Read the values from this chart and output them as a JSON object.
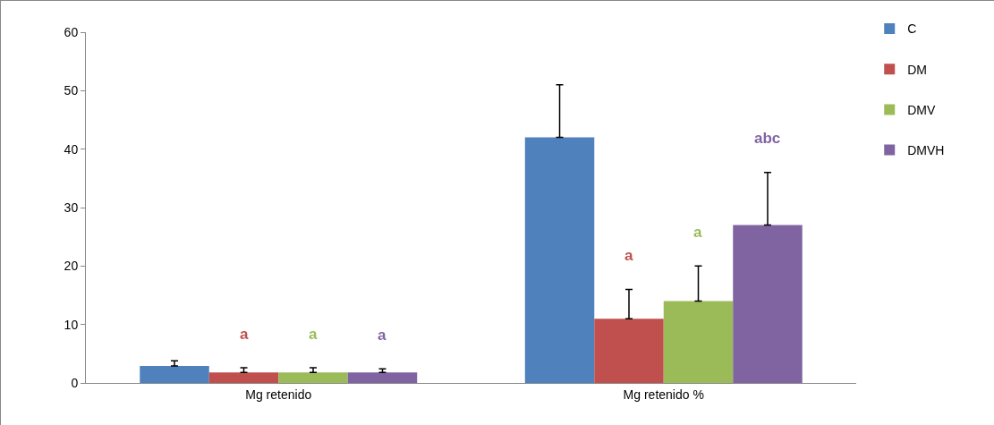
{
  "chart_data": {
    "type": "bar",
    "categories": [
      "Mg retenido",
      "Mg retenido %"
    ],
    "series": [
      {
        "name": "C",
        "color": "#4f81bd",
        "values": [
          2.9,
          42
        ],
        "errors": [
          0.9,
          9
        ]
      },
      {
        "name": "DM",
        "color": "#c0504d",
        "values": [
          1.8,
          11
        ],
        "errors": [
          0.8,
          5
        ]
      },
      {
        "name": "DMV",
        "color": "#9bbb59",
        "values": [
          1.8,
          14
        ],
        "errors": [
          0.8,
          6
        ]
      },
      {
        "name": "DMVH",
        "color": "#8064a2",
        "values": [
          1.8,
          27
        ],
        "errors": [
          0.6,
          9
        ]
      }
    ],
    "annotations": [
      "a",
      "a",
      "a",
      "a",
      "a",
      "abc"
    ],
    "ylim": [
      0,
      60
    ],
    "yticks": [
      0,
      10,
      20,
      30,
      40,
      50,
      60
    ],
    "grid": false,
    "legend": "top right"
  }
}
